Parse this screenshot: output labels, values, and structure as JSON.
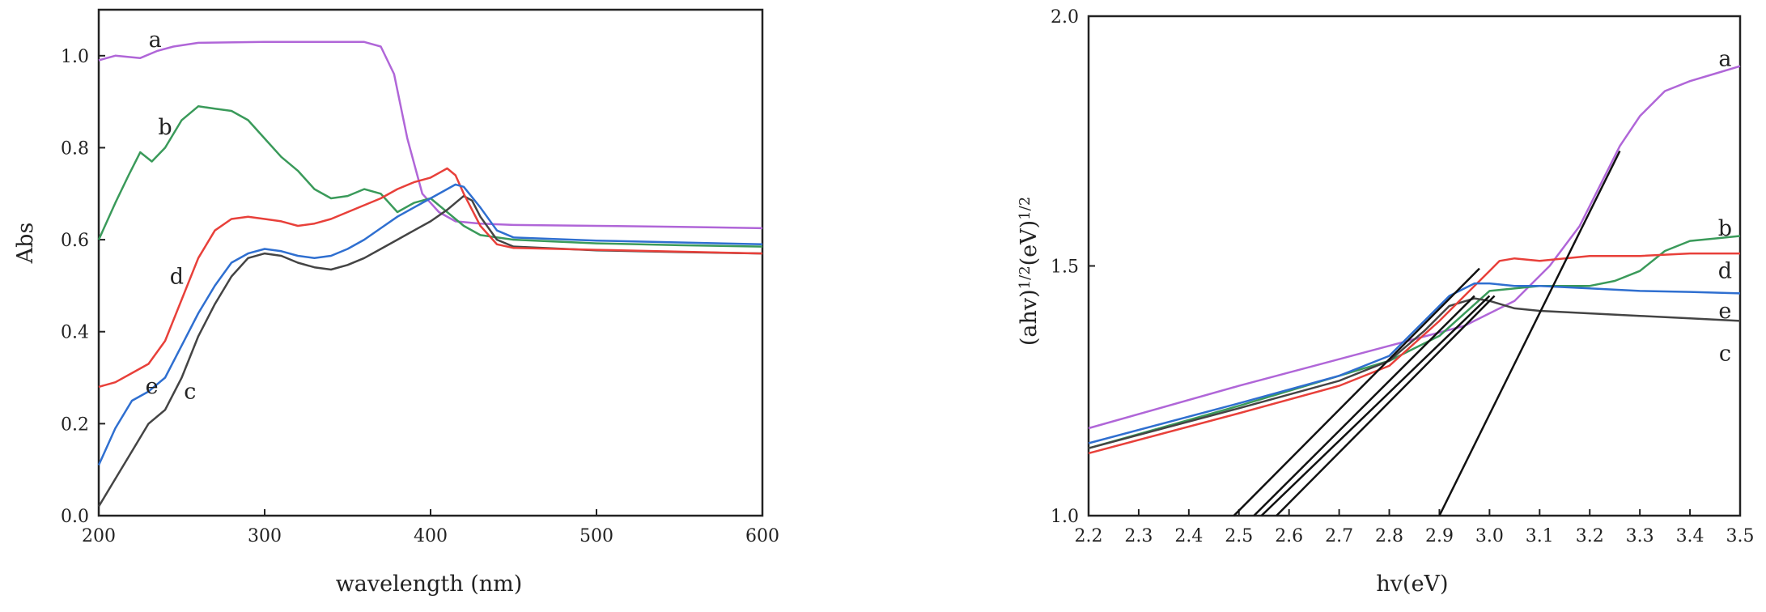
{
  "chart_data": [
    {
      "type": "line",
      "title": "",
      "xlabel": "wavelength (nm)",
      "ylabel": "Abs",
      "xlim": [
        200,
        600
      ],
      "ylim": [
        0.0,
        1.1
      ],
      "xticks": [
        "200",
        "300",
        "400",
        "500",
        "600"
      ],
      "yticks": [
        "0.0",
        "0.2",
        "0.4",
        "0.6",
        "0.8",
        "1.0"
      ],
      "grid": false,
      "series": [
        {
          "name": "a",
          "color": "#b066d8",
          "x": [
            200,
            210,
            225,
            235,
            245,
            260,
            300,
            340,
            360,
            370,
            378,
            386,
            395,
            405,
            415,
            430,
            450,
            500,
            550,
            600
          ],
          "y": [
            0.99,
            1.0,
            0.995,
            1.01,
            1.02,
            1.028,
            1.03,
            1.03,
            1.03,
            1.02,
            0.96,
            0.82,
            0.7,
            0.66,
            0.64,
            0.635,
            0.632,
            0.63,
            0.628,
            0.625
          ]
        },
        {
          "name": "b",
          "color": "#3a9a5a",
          "x": [
            200,
            210,
            218,
            225,
            232,
            240,
            250,
            260,
            270,
            280,
            290,
            300,
            310,
            320,
            330,
            340,
            350,
            360,
            370,
            380,
            390,
            400,
            410,
            420,
            430,
            440,
            450,
            500,
            550,
            600
          ],
          "y": [
            0.6,
            0.68,
            0.74,
            0.79,
            0.77,
            0.8,
            0.86,
            0.89,
            0.885,
            0.88,
            0.86,
            0.82,
            0.78,
            0.75,
            0.71,
            0.69,
            0.695,
            0.71,
            0.7,
            0.66,
            0.68,
            0.69,
            0.66,
            0.63,
            0.61,
            0.605,
            0.6,
            0.592,
            0.588,
            0.585
          ]
        },
        {
          "name": "c",
          "color": "#444444",
          "x": [
            200,
            210,
            220,
            230,
            240,
            250,
            260,
            270,
            280,
            290,
            300,
            310,
            320,
            330,
            340,
            350,
            360,
            370,
            380,
            390,
            400,
            410,
            415,
            420,
            425,
            430,
            440,
            450,
            500,
            550,
            600
          ],
          "y": [
            0.02,
            0.08,
            0.14,
            0.2,
            0.23,
            0.3,
            0.39,
            0.46,
            0.52,
            0.56,
            0.57,
            0.565,
            0.55,
            0.54,
            0.535,
            0.545,
            0.56,
            0.58,
            0.6,
            0.62,
            0.64,
            0.665,
            0.68,
            0.695,
            0.685,
            0.65,
            0.6,
            0.585,
            0.577,
            0.573,
            0.57
          ]
        },
        {
          "name": "d",
          "color": "#e8403a",
          "x": [
            200,
            210,
            220,
            230,
            240,
            250,
            260,
            270,
            280,
            290,
            300,
            310,
            320,
            330,
            340,
            350,
            360,
            370,
            380,
            390,
            400,
            405,
            410,
            415,
            420,
            430,
            440,
            450,
            500,
            550,
            600
          ],
          "y": [
            0.28,
            0.29,
            0.31,
            0.33,
            0.38,
            0.47,
            0.56,
            0.62,
            0.645,
            0.65,
            0.645,
            0.64,
            0.63,
            0.635,
            0.645,
            0.66,
            0.675,
            0.69,
            0.71,
            0.725,
            0.735,
            0.745,
            0.755,
            0.74,
            0.7,
            0.63,
            0.59,
            0.582,
            0.578,
            0.574,
            0.57
          ]
        },
        {
          "name": "e",
          "color": "#2f6fd0",
          "x": [
            200,
            210,
            220,
            230,
            240,
            250,
            260,
            270,
            280,
            290,
            300,
            310,
            320,
            330,
            340,
            350,
            360,
            370,
            380,
            390,
            400,
            410,
            415,
            420,
            430,
            440,
            450,
            500,
            550,
            600
          ],
          "y": [
            0.11,
            0.19,
            0.25,
            0.27,
            0.3,
            0.37,
            0.44,
            0.5,
            0.55,
            0.57,
            0.58,
            0.575,
            0.565,
            0.56,
            0.565,
            0.58,
            0.6,
            0.625,
            0.65,
            0.67,
            0.69,
            0.71,
            0.72,
            0.715,
            0.67,
            0.62,
            0.605,
            0.598,
            0.594,
            0.59
          ]
        }
      ],
      "annotations": [
        {
          "text": "a",
          "x": 234,
          "y": 1.035
        },
        {
          "text": "b",
          "x": 240,
          "y": 0.845
        },
        {
          "text": "c",
          "x": 255,
          "y": 0.27
        },
        {
          "text": "d",
          "x": 247,
          "y": 0.52
        },
        {
          "text": "e",
          "x": 232,
          "y": 0.282
        }
      ]
    },
    {
      "type": "line",
      "title": "",
      "xlabel": "hv(eV)",
      "ylabel": "(ahv)^1/2(eV)^1/2",
      "xlim": [
        2.2,
        3.5
      ],
      "ylim": [
        1.0,
        2.0
      ],
      "xticks": [
        "2.2",
        "2.3",
        "2.4",
        "2.5",
        "2.6",
        "2.7",
        "2.8",
        "2.9",
        "3.0",
        "3.1",
        "3.2",
        "3.3",
        "3.4",
        "3.5"
      ],
      "yticks": [
        "1.0",
        "1.5",
        "2.0"
      ],
      "grid": false,
      "series": [
        {
          "name": "a",
          "color": "#b066d8",
          "x": [
            2.2,
            2.5,
            2.8,
            2.95,
            3.05,
            3.12,
            3.18,
            3.22,
            3.26,
            3.3,
            3.35,
            3.4,
            3.45,
            3.5
          ],
          "y": [
            1.175,
            1.26,
            1.34,
            1.38,
            1.43,
            1.5,
            1.58,
            1.66,
            1.74,
            1.8,
            1.85,
            1.87,
            1.885,
            1.9
          ]
        },
        {
          "name": "b",
          "color": "#3a9a5a",
          "x": [
            2.2,
            2.5,
            2.8,
            2.9,
            3.0,
            3.1,
            3.2,
            3.25,
            3.3,
            3.35,
            3.4,
            3.45,
            3.5
          ],
          "y": [
            1.135,
            1.22,
            1.31,
            1.36,
            1.45,
            1.46,
            1.46,
            1.47,
            1.49,
            1.53,
            1.55,
            1.555,
            1.56
          ]
        },
        {
          "name": "c",
          "color": "#444444",
          "x": [
            2.2,
            2.5,
            2.7,
            2.8,
            2.87,
            2.92,
            2.97,
            3.0,
            3.05,
            3.1,
            3.2,
            3.3,
            3.4,
            3.5
          ],
          "y": [
            1.135,
            1.215,
            1.27,
            1.31,
            1.37,
            1.42,
            1.435,
            1.43,
            1.415,
            1.41,
            1.405,
            1.4,
            1.395,
            1.39
          ]
        },
        {
          "name": "d",
          "color": "#e8403a",
          "x": [
            2.2,
            2.5,
            2.7,
            2.8,
            2.9,
            2.95,
            3.0,
            3.02,
            3.05,
            3.1,
            3.2,
            3.3,
            3.4,
            3.5
          ],
          "y": [
            1.125,
            1.205,
            1.26,
            1.3,
            1.39,
            1.44,
            1.49,
            1.51,
            1.515,
            1.51,
            1.52,
            1.52,
            1.525,
            1.525
          ]
        },
        {
          "name": "e",
          "color": "#2f6fd0",
          "x": [
            2.2,
            2.5,
            2.7,
            2.8,
            2.87,
            2.92,
            2.97,
            3.0,
            3.05,
            3.1,
            3.2,
            3.3,
            3.4,
            3.5
          ],
          "y": [
            1.145,
            1.225,
            1.28,
            1.32,
            1.39,
            1.44,
            1.465,
            1.465,
            1.46,
            1.46,
            1.455,
            1.45,
            1.448,
            1.445
          ]
        }
      ],
      "tangent_lines": [
        {
          "x1": 2.49,
          "y1": 1.0,
          "x2": 2.98,
          "y2": 1.495
        },
        {
          "x1": 2.53,
          "y1": 1.0,
          "x2": 2.97,
          "y2": 1.44
        },
        {
          "x1": 2.545,
          "y1": 1.0,
          "x2": 3.0,
          "y2": 1.44
        },
        {
          "x1": 2.575,
          "y1": 1.0,
          "x2": 3.01,
          "y2": 1.44
        },
        {
          "x1": 2.9,
          "y1": 1.0,
          "x2": 3.26,
          "y2": 1.73
        }
      ],
      "annotations": [
        {
          "text": "a",
          "x": 3.47,
          "y": 1.915
        },
        {
          "text": "b",
          "x": 3.47,
          "y": 1.575
        },
        {
          "text": "d",
          "x": 3.47,
          "y": 1.49
        },
        {
          "text": "e",
          "x": 3.47,
          "y": 1.41
        },
        {
          "text": "c",
          "x": 3.47,
          "y": 1.325
        }
      ]
    }
  ]
}
